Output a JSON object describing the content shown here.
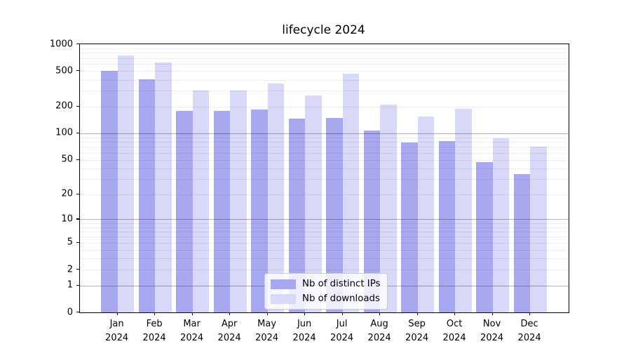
{
  "title": "lifecycle 2024",
  "chart_data": {
    "type": "bar",
    "title": "lifecycle 2024",
    "xlabel": "",
    "ylabel": "",
    "y_scale": "log10(value+1), 0 at baseline",
    "ylim": [
      0,
      1000
    ],
    "yticks": [
      1000,
      500,
      200,
      100,
      50,
      20,
      10,
      5,
      2,
      1,
      0
    ],
    "grid": "horizontal, log minor + major lines at 1/10/100",
    "legend_position": "inside lower-center-left",
    "categories": [
      "Jan",
      "Feb",
      "Mar",
      "Apr",
      "May",
      "Jun",
      "Jul",
      "Aug",
      "Sep",
      "Oct",
      "Nov",
      "Dec"
    ],
    "x_year": "2024",
    "series": [
      {
        "name": "Nb of distinct IPs",
        "color": "#a8a8f0",
        "values": [
          500,
          405,
          180,
          180,
          185,
          145,
          150,
          108,
          79,
          81,
          47,
          34
        ]
      },
      {
        "name": "Nb of downloads",
        "color": "#d8d8f8",
        "values": [
          750,
          620,
          305,
          300,
          365,
          265,
          465,
          210,
          155,
          190,
          87,
          70
        ]
      }
    ]
  }
}
